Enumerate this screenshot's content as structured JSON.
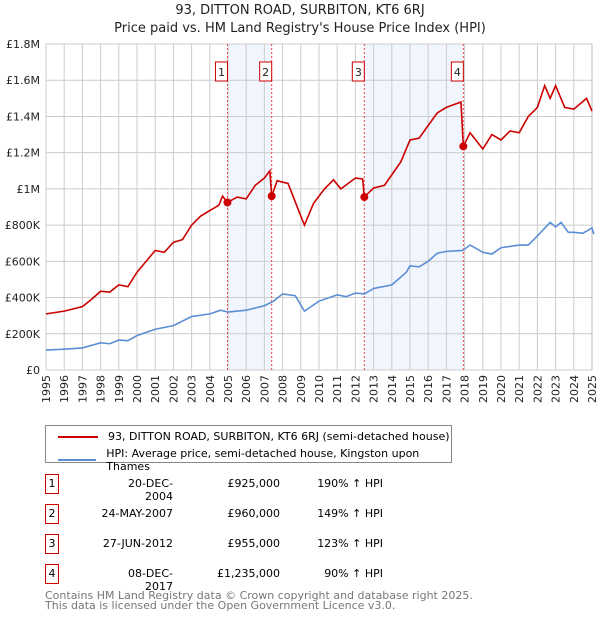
{
  "chart_data": {
    "type": "line",
    "title": "93, DITTON ROAD, SURBITON, KT6 6RJ",
    "subtitle": "Price paid vs. HM Land Registry's House Price Index (HPI)",
    "xlim": [
      1995,
      2025
    ],
    "ylim": [
      0,
      1800000
    ],
    "y_ticks": [
      {
        "v": 0,
        "label": "£0"
      },
      {
        "v": 200000,
        "label": "£200K"
      },
      {
        "v": 400000,
        "label": "£400K"
      },
      {
        "v": 600000,
        "label": "£600K"
      },
      {
        "v": 800000,
        "label": "£800K"
      },
      {
        "v": 1000000,
        "label": "£1M"
      },
      {
        "v": 1200000,
        "label": "£1.2M"
      },
      {
        "v": 1400000,
        "label": "£1.4M"
      },
      {
        "v": 1600000,
        "label": "£1.6M"
      },
      {
        "v": 1800000,
        "label": "£1.8M"
      }
    ],
    "x_ticks": [
      "1995",
      "1996",
      "1997",
      "1998",
      "1999",
      "2000",
      "2001",
      "2002",
      "2003",
      "2004",
      "2005",
      "2006",
      "2007",
      "2008",
      "2009",
      "2010",
      "2011",
      "2012",
      "2013",
      "2014",
      "2015",
      "2016",
      "2017",
      "2018",
      "2019",
      "2020",
      "2021",
      "2022",
      "2023",
      "2024",
      "2025"
    ],
    "grid": true,
    "series": [
      {
        "name": "93, DITTON ROAD, SURBITON, KT6 6RJ (semi-detached house)",
        "color": "#cc0000",
        "points": [
          [
            1995,
            310
          ],
          [
            1996,
            325
          ],
          [
            1997,
            350
          ],
          [
            1997.5,
            390
          ],
          [
            1998,
            435
          ],
          [
            1998.5,
            430
          ],
          [
            1999,
            470
          ],
          [
            1999.5,
            460
          ],
          [
            2000,
            540
          ],
          [
            2000.5,
            600
          ],
          [
            2001,
            660
          ],
          [
            2001.5,
            650
          ],
          [
            2002,
            705
          ],
          [
            2002.5,
            720
          ],
          [
            2003,
            800
          ],
          [
            2003.5,
            850
          ],
          [
            2004,
            880
          ],
          [
            2004.5,
            910
          ],
          [
            2004.7,
            960
          ],
          [
            2004.97,
            925
          ],
          [
            2005.5,
            955
          ],
          [
            2006,
            945
          ],
          [
            2006.5,
            1020
          ],
          [
            2007,
            1060
          ],
          [
            2007.3,
            1100
          ],
          [
            2007.4,
            960
          ],
          [
            2007.7,
            1045
          ],
          [
            2008.3,
            1030
          ],
          [
            2009,
            850
          ],
          [
            2009.2,
            800
          ],
          [
            2009.7,
            920
          ],
          [
            2010.3,
            1000
          ],
          [
            2010.8,
            1050
          ],
          [
            2011.2,
            1000
          ],
          [
            2012,
            1060
          ],
          [
            2012.4,
            1055
          ],
          [
            2012.49,
            955
          ],
          [
            2013,
            1005
          ],
          [
            2013.6,
            1020
          ],
          [
            2014.5,
            1150
          ],
          [
            2015,
            1270
          ],
          [
            2015.5,
            1280
          ],
          [
            2016,
            1350
          ],
          [
            2016.5,
            1420
          ],
          [
            2017,
            1450
          ],
          [
            2017.8,
            1480
          ],
          [
            2017.93,
            1235
          ],
          [
            2018.3,
            1310
          ],
          [
            2019,
            1220
          ],
          [
            2019.5,
            1300
          ],
          [
            2020,
            1270
          ],
          [
            2020.5,
            1320
          ],
          [
            2021,
            1310
          ],
          [
            2021.5,
            1400
          ],
          [
            2022,
            1450
          ],
          [
            2022.4,
            1570
          ],
          [
            2022.7,
            1500
          ],
          [
            2023,
            1570
          ],
          [
            2023.5,
            1450
          ],
          [
            2024,
            1440
          ],
          [
            2024.7,
            1500
          ],
          [
            2025,
            1430
          ]
        ]
      },
      {
        "name": "HPI: Average price, semi-detached house, Kingston upon Thames",
        "color": "#5b8fd4",
        "points": [
          [
            1995,
            110
          ],
          [
            1996,
            115
          ],
          [
            1997,
            122
          ],
          [
            1998,
            150
          ],
          [
            1998.5,
            145
          ],
          [
            1999,
            165
          ],
          [
            1999.5,
            162
          ],
          [
            2000,
            190
          ],
          [
            2001,
            225
          ],
          [
            2002,
            245
          ],
          [
            2003,
            295
          ],
          [
            2004,
            310
          ],
          [
            2004.6,
            330
          ],
          [
            2005,
            320
          ],
          [
            2006,
            330
          ],
          [
            2007,
            355
          ],
          [
            2007.5,
            380
          ],
          [
            2008,
            420
          ],
          [
            2008.7,
            410
          ],
          [
            2009.2,
            325
          ],
          [
            2010,
            380
          ],
          [
            2011,
            415
          ],
          [
            2011.5,
            405
          ],
          [
            2012,
            425
          ],
          [
            2012.5,
            420
          ],
          [
            2013,
            450
          ],
          [
            2014,
            470
          ],
          [
            2014.8,
            540
          ],
          [
            2015,
            575
          ],
          [
            2015.5,
            570
          ],
          [
            2016,
            600
          ],
          [
            2016.5,
            645
          ],
          [
            2017,
            655
          ],
          [
            2017.9,
            660
          ],
          [
            2018.3,
            690
          ],
          [
            2019,
            650
          ],
          [
            2019.5,
            640
          ],
          [
            2020,
            675
          ],
          [
            2021,
            690
          ],
          [
            2021.5,
            690
          ],
          [
            2022,
            740
          ],
          [
            2022.7,
            815
          ],
          [
            2023,
            790
          ],
          [
            2023.3,
            815
          ],
          [
            2023.7,
            760
          ],
          [
            2024,
            760
          ],
          [
            2024.5,
            755
          ],
          [
            2025,
            785
          ],
          [
            2025.1,
            750
          ]
        ]
      }
    ],
    "value_units": "thousands GBP",
    "sales": [
      {
        "n": "1",
        "date": "20-DEC-2004",
        "price": "£925,000",
        "hpi": "190% ↑ HPI",
        "x": 2004.97,
        "y": 925
      },
      {
        "n": "2",
        "date": "24-MAY-2007",
        "price": "£960,000",
        "hpi": "149% ↑ HPI",
        "x": 2007.4,
        "y": 960
      },
      {
        "n": "3",
        "date": "27-JUN-2012",
        "price": "£955,000",
        "hpi": "123% ↑ HPI",
        "x": 2012.49,
        "y": 955
      },
      {
        "n": "4",
        "date": "08-DEC-2017",
        "price": "£1,235,000",
        "hpi": "90% ↑ HPI",
        "x": 2017.93,
        "y": 1235
      }
    ],
    "shaded": [
      [
        2004.97,
        2007.4
      ],
      [
        2012.49,
        2017.93
      ]
    ]
  },
  "footer": {
    "line1": "Contains HM Land Registry data © Crown copyright and database right 2025.",
    "line2": "This data is licensed under the Open Government Licence v3.0."
  }
}
